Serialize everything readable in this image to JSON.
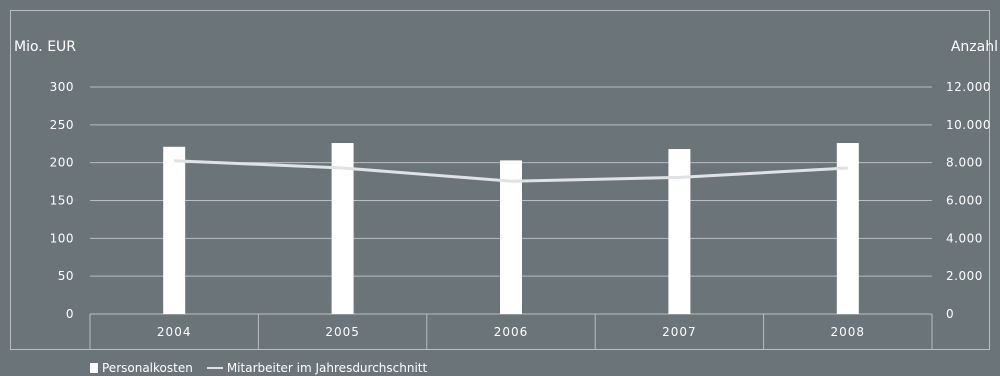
{
  "chart_data": {
    "type": "bar",
    "categories": [
      "2004",
      "2005",
      "2006",
      "2007",
      "2008"
    ],
    "series": [
      {
        "name": "Personalkosten",
        "type": "bar",
        "axis": "left",
        "values": [
          221,
          226,
          203,
          218,
          226
        ]
      },
      {
        "name": "Mitarbeiter im Jahresdurchschnitt",
        "type": "line",
        "axis": "right",
        "values": [
          8100,
          7720,
          7020,
          7220,
          7720
        ]
      }
    ],
    "ylabel_left": "Mio. EUR",
    "ylabel_right": "Anzahl",
    "ylim_left": [
      0,
      300
    ],
    "yticks_left": [
      "0",
      "50",
      "100",
      "150",
      "200",
      "250",
      "300"
    ],
    "ylim_right": [
      0,
      12000
    ],
    "yticks_right": [
      "0",
      "2.000",
      "4.000",
      "6.000",
      "8.000",
      "10.000",
      "12.000"
    ],
    "grid": true,
    "legend_position": "bottom-left",
    "colors": {
      "background": "#6b7478",
      "bar": "#ffffff",
      "line": "#e0e3e5",
      "grid": "#b8bec1",
      "text": "#ffffff"
    }
  },
  "legend": {
    "bar_label": "Personalkosten",
    "line_label": "Mitarbeiter im Jahresdurchschnitt"
  }
}
